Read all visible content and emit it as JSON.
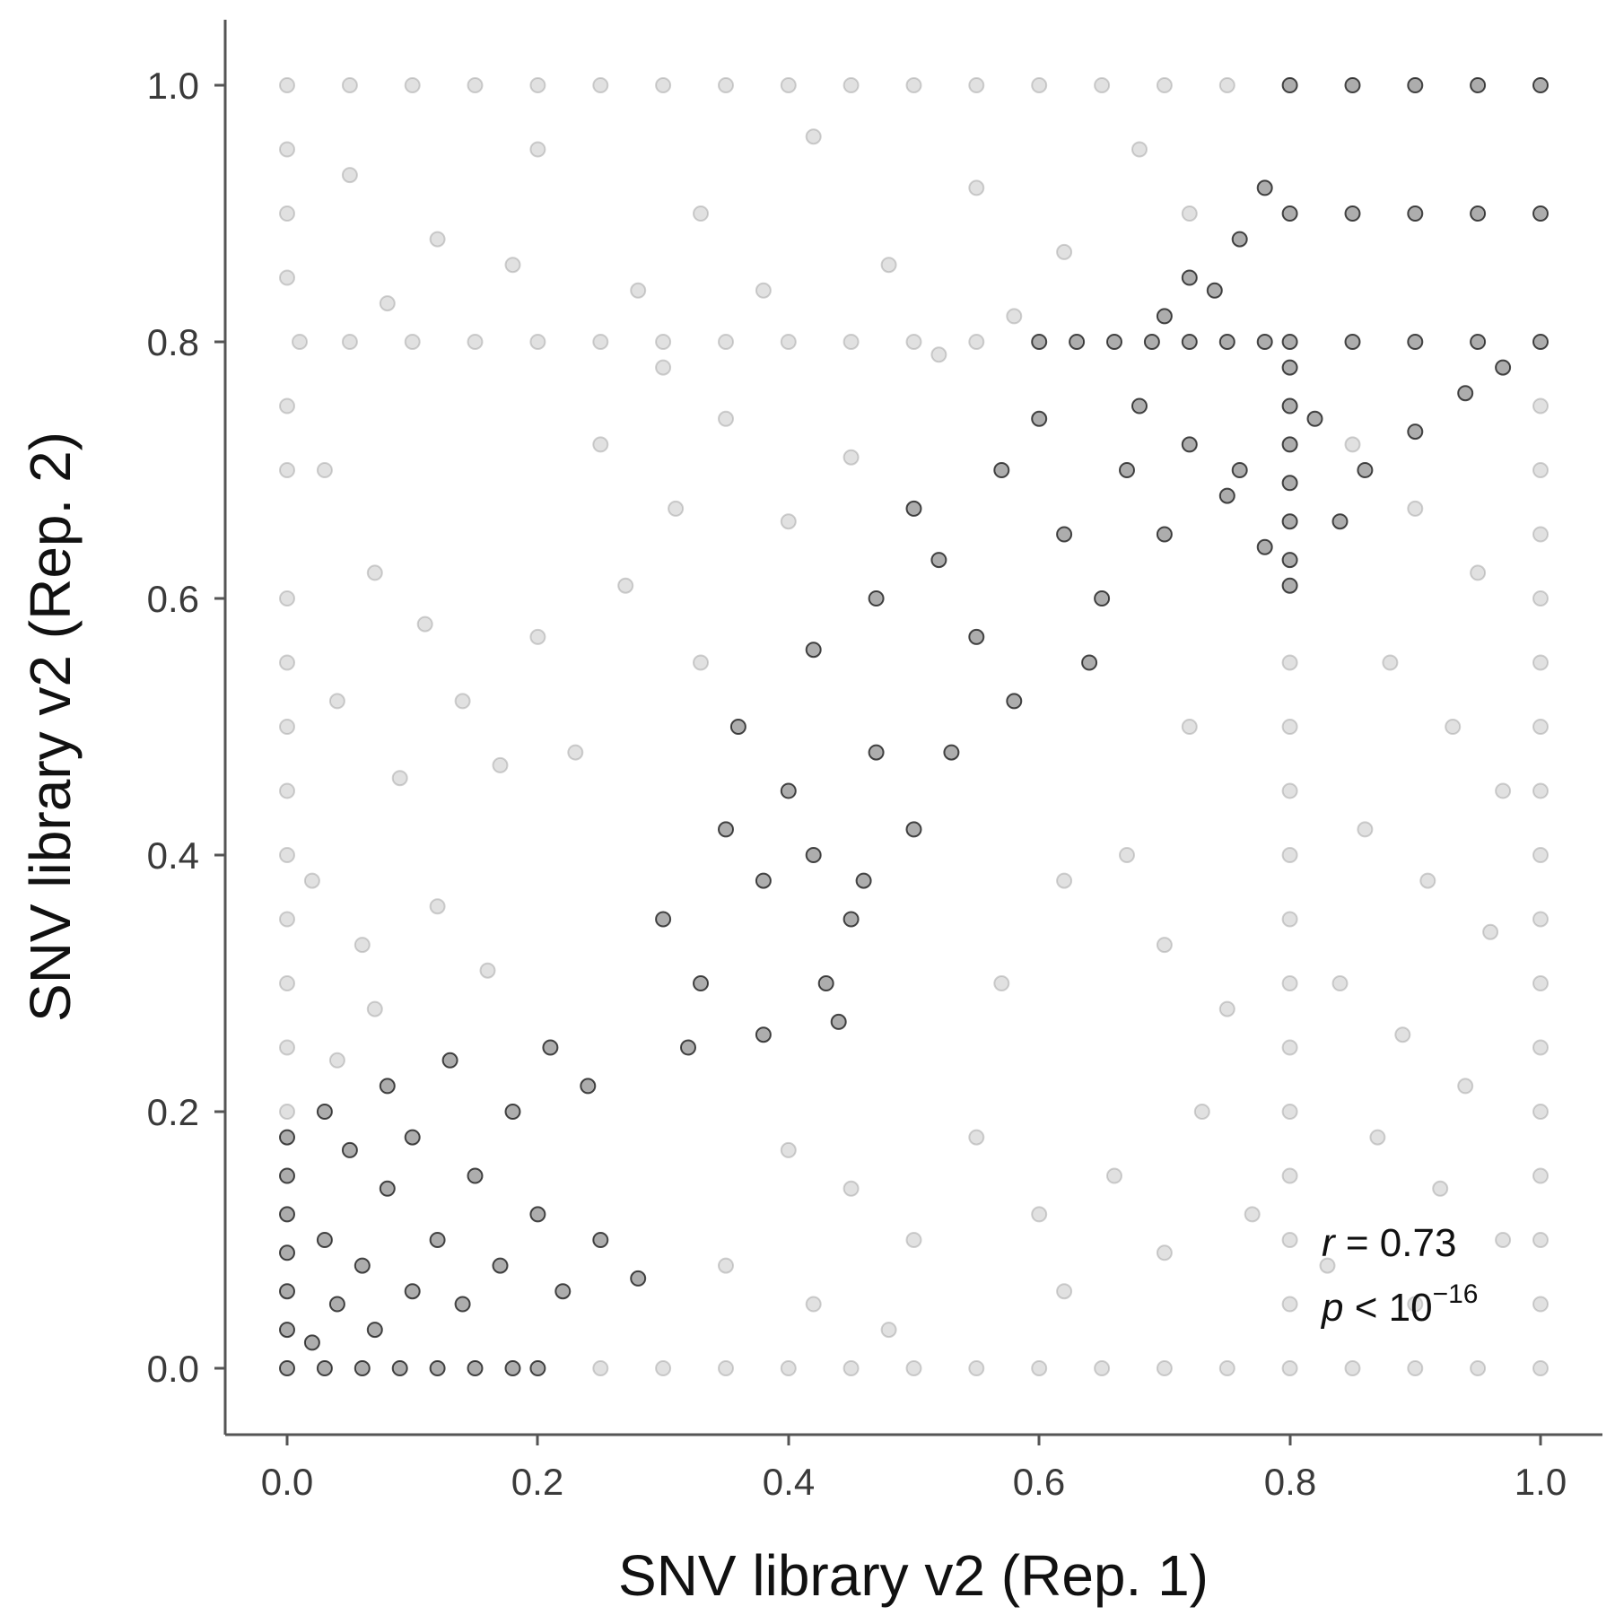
{
  "chart_data": {
    "type": "scatter",
    "xlabel": "SNV library v2 (Rep. 1)",
    "ylabel": "SNV library v2 (Rep. 2)",
    "xlim": [
      0.0,
      1.0
    ],
    "ylim": [
      0.0,
      1.0
    ],
    "xticks": [
      "0.0",
      "0.2",
      "0.4",
      "0.6",
      "0.8",
      "1.0"
    ],
    "yticks": [
      "0.0",
      "0.2",
      "0.4",
      "0.6",
      "0.8",
      "1.0"
    ],
    "grid": false,
    "legend": "none",
    "annotation": {
      "r_symbol": "r",
      "r_text": " = 0.73",
      "p_symbol": "p",
      "p_text": " < 10",
      "p_exponent": "−16"
    },
    "series": [
      {
        "color": "#9a9a9a",
        "points": [
          [
            0.0,
            1.0
          ],
          [
            0.05,
            1.0
          ],
          [
            0.1,
            1.0
          ],
          [
            0.15,
            1.0
          ],
          [
            0.2,
            1.0
          ],
          [
            0.25,
            1.0
          ],
          [
            0.3,
            1.0
          ],
          [
            0.35,
            1.0
          ],
          [
            0.4,
            1.0
          ],
          [
            0.45,
            1.0
          ],
          [
            0.5,
            1.0
          ],
          [
            0.55,
            1.0
          ],
          [
            0.6,
            1.0
          ],
          [
            0.65,
            1.0
          ],
          [
            0.7,
            1.0
          ],
          [
            0.75,
            1.0
          ],
          [
            0.0,
            0.95
          ],
          [
            0.0,
            0.9
          ],
          [
            0.0,
            0.85
          ],
          [
            0.0,
            0.75
          ],
          [
            0.0,
            0.7
          ],
          [
            0.0,
            0.6
          ],
          [
            0.0,
            0.55
          ],
          [
            0.0,
            0.5
          ],
          [
            0.0,
            0.45
          ],
          [
            0.0,
            0.4
          ],
          [
            0.0,
            0.35
          ],
          [
            0.0,
            0.3
          ],
          [
            0.0,
            0.25
          ],
          [
            0.0,
            0.2
          ],
          [
            0.01,
            0.8
          ],
          [
            0.05,
            0.8
          ],
          [
            0.1,
            0.8
          ],
          [
            0.15,
            0.8
          ],
          [
            0.2,
            0.8
          ],
          [
            0.25,
            0.8
          ],
          [
            0.3,
            0.8
          ],
          [
            0.35,
            0.8
          ],
          [
            0.4,
            0.8
          ],
          [
            0.45,
            0.8
          ],
          [
            0.5,
            0.8
          ],
          [
            0.55,
            0.8
          ],
          [
            1.0,
            0.75
          ],
          [
            1.0,
            0.7
          ],
          [
            1.0,
            0.65
          ],
          [
            1.0,
            0.6
          ],
          [
            1.0,
            0.55
          ],
          [
            1.0,
            0.5
          ],
          [
            1.0,
            0.45
          ],
          [
            1.0,
            0.4
          ],
          [
            1.0,
            0.35
          ],
          [
            1.0,
            0.3
          ],
          [
            1.0,
            0.25
          ],
          [
            1.0,
            0.2
          ],
          [
            1.0,
            0.15
          ],
          [
            1.0,
            0.1
          ],
          [
            1.0,
            0.05
          ],
          [
            1.0,
            0.0
          ],
          [
            0.8,
            0.55
          ],
          [
            0.8,
            0.5
          ],
          [
            0.8,
            0.45
          ],
          [
            0.8,
            0.4
          ],
          [
            0.8,
            0.35
          ],
          [
            0.8,
            0.3
          ],
          [
            0.8,
            0.25
          ],
          [
            0.8,
            0.2
          ],
          [
            0.8,
            0.15
          ],
          [
            0.8,
            0.1
          ],
          [
            0.8,
            0.05
          ],
          [
            0.8,
            0.0
          ],
          [
            0.25,
            0.0
          ],
          [
            0.3,
            0.0
          ],
          [
            0.35,
            0.0
          ],
          [
            0.4,
            0.0
          ],
          [
            0.45,
            0.0
          ],
          [
            0.5,
            0.0
          ],
          [
            0.55,
            0.0
          ],
          [
            0.6,
            0.0
          ],
          [
            0.65,
            0.0
          ],
          [
            0.7,
            0.0
          ],
          [
            0.75,
            0.0
          ],
          [
            0.85,
            0.0
          ],
          [
            0.9,
            0.0
          ],
          [
            0.95,
            0.0
          ],
          [
            0.05,
            0.93
          ],
          [
            0.12,
            0.88
          ],
          [
            0.2,
            0.95
          ],
          [
            0.28,
            0.84
          ],
          [
            0.33,
            0.9
          ],
          [
            0.42,
            0.96
          ],
          [
            0.48,
            0.86
          ],
          [
            0.55,
            0.92
          ],
          [
            0.62,
            0.87
          ],
          [
            0.68,
            0.95
          ],
          [
            0.72,
            0.9
          ],
          [
            0.08,
            0.83
          ],
          [
            0.18,
            0.86
          ],
          [
            0.38,
            0.84
          ],
          [
            0.58,
            0.82
          ],
          [
            0.03,
            0.7
          ],
          [
            0.07,
            0.62
          ],
          [
            0.04,
            0.52
          ],
          [
            0.09,
            0.46
          ],
          [
            0.02,
            0.38
          ],
          [
            0.06,
            0.33
          ],
          [
            0.11,
            0.58
          ],
          [
            0.14,
            0.52
          ],
          [
            0.2,
            0.57
          ],
          [
            0.17,
            0.47
          ],
          [
            0.23,
            0.48
          ],
          [
            0.27,
            0.61
          ],
          [
            0.31,
            0.67
          ],
          [
            0.25,
            0.72
          ],
          [
            0.12,
            0.36
          ],
          [
            0.07,
            0.28
          ],
          [
            0.04,
            0.24
          ],
          [
            0.16,
            0.31
          ],
          [
            0.33,
            0.55
          ],
          [
            0.45,
            0.71
          ],
          [
            0.4,
            0.66
          ],
          [
            0.35,
            0.74
          ],
          [
            0.52,
            0.79
          ],
          [
            0.3,
            0.78
          ],
          [
            0.85,
            0.72
          ],
          [
            0.9,
            0.67
          ],
          [
            0.95,
            0.62
          ],
          [
            0.88,
            0.55
          ],
          [
            0.93,
            0.5
          ],
          [
            0.97,
            0.45
          ],
          [
            0.86,
            0.42
          ],
          [
            0.91,
            0.38
          ],
          [
            0.96,
            0.34
          ],
          [
            0.84,
            0.3
          ],
          [
            0.89,
            0.26
          ],
          [
            0.94,
            0.22
          ],
          [
            0.87,
            0.18
          ],
          [
            0.92,
            0.14
          ],
          [
            0.97,
            0.1
          ],
          [
            0.83,
            0.08
          ],
          [
            0.9,
            0.05
          ],
          [
            0.72,
            0.5
          ],
          [
            0.67,
            0.4
          ],
          [
            0.7,
            0.33
          ],
          [
            0.75,
            0.28
          ],
          [
            0.73,
            0.2
          ],
          [
            0.66,
            0.15
          ],
          [
            0.6,
            0.12
          ],
          [
            0.55,
            0.18
          ],
          [
            0.5,
            0.1
          ],
          [
            0.45,
            0.14
          ],
          [
            0.4,
            0.17
          ],
          [
            0.35,
            0.08
          ],
          [
            0.42,
            0.05
          ],
          [
            0.48,
            0.03
          ],
          [
            0.62,
            0.06
          ],
          [
            0.7,
            0.09
          ],
          [
            0.77,
            0.12
          ],
          [
            0.57,
            0.3
          ],
          [
            0.62,
            0.38
          ]
        ]
      },
      {
        "color": "#000000",
        "points": [
          [
            0.8,
            1.0
          ],
          [
            0.85,
            1.0
          ],
          [
            0.9,
            1.0
          ],
          [
            0.95,
            1.0
          ],
          [
            1.0,
            1.0
          ],
          [
            0.8,
            0.9
          ],
          [
            0.85,
            0.9
          ],
          [
            0.9,
            0.9
          ],
          [
            0.95,
            0.9
          ],
          [
            1.0,
            0.9
          ],
          [
            0.8,
            0.8
          ],
          [
            0.85,
            0.8
          ],
          [
            0.9,
            0.8
          ],
          [
            0.95,
            0.8
          ],
          [
            1.0,
            0.8
          ],
          [
            0.6,
            0.8
          ],
          [
            0.63,
            0.8
          ],
          [
            0.66,
            0.8
          ],
          [
            0.69,
            0.8
          ],
          [
            0.72,
            0.8
          ],
          [
            0.75,
            0.8
          ],
          [
            0.78,
            0.8
          ],
          [
            0.8,
            0.78
          ],
          [
            0.8,
            0.75
          ],
          [
            0.8,
            0.72
          ],
          [
            0.8,
            0.69
          ],
          [
            0.8,
            0.66
          ],
          [
            0.8,
            0.63
          ],
          [
            0.8,
            0.61
          ],
          [
            0.0,
            0.0
          ],
          [
            0.0,
            0.03
          ],
          [
            0.0,
            0.06
          ],
          [
            0.0,
            0.09
          ],
          [
            0.0,
            0.12
          ],
          [
            0.0,
            0.15
          ],
          [
            0.0,
            0.18
          ],
          [
            0.03,
            0.0
          ],
          [
            0.06,
            0.0
          ],
          [
            0.09,
            0.0
          ],
          [
            0.12,
            0.0
          ],
          [
            0.15,
            0.0
          ],
          [
            0.18,
            0.0
          ],
          [
            0.2,
            0.0
          ],
          [
            0.02,
            0.02
          ],
          [
            0.04,
            0.05
          ],
          [
            0.07,
            0.03
          ],
          [
            0.03,
            0.1
          ],
          [
            0.06,
            0.08
          ],
          [
            0.1,
            0.06
          ],
          [
            0.12,
            0.1
          ],
          [
            0.08,
            0.14
          ],
          [
            0.05,
            0.17
          ],
          [
            0.14,
            0.05
          ],
          [
            0.17,
            0.08
          ],
          [
            0.2,
            0.12
          ],
          [
            0.22,
            0.06
          ],
          [
            0.25,
            0.1
          ],
          [
            0.28,
            0.07
          ],
          [
            0.03,
            0.2
          ],
          [
            0.1,
            0.18
          ],
          [
            0.15,
            0.15
          ],
          [
            0.18,
            0.2
          ],
          [
            0.24,
            0.22
          ],
          [
            0.21,
            0.25
          ],
          [
            0.13,
            0.24
          ],
          [
            0.08,
            0.22
          ],
          [
            0.3,
            0.35
          ],
          [
            0.33,
            0.3
          ],
          [
            0.35,
            0.42
          ],
          [
            0.38,
            0.38
          ],
          [
            0.4,
            0.45
          ],
          [
            0.42,
            0.4
          ],
          [
            0.45,
            0.35
          ],
          [
            0.43,
            0.3
          ],
          [
            0.47,
            0.48
          ],
          [
            0.5,
            0.42
          ],
          [
            0.36,
            0.5
          ],
          [
            0.42,
            0.56
          ],
          [
            0.47,
            0.6
          ],
          [
            0.52,
            0.63
          ],
          [
            0.55,
            0.57
          ],
          [
            0.5,
            0.67
          ],
          [
            0.57,
            0.7
          ],
          [
            0.6,
            0.74
          ],
          [
            0.62,
            0.65
          ],
          [
            0.65,
            0.6
          ],
          [
            0.67,
            0.7
          ],
          [
            0.7,
            0.65
          ],
          [
            0.72,
            0.72
          ],
          [
            0.68,
            0.75
          ],
          [
            0.75,
            0.68
          ],
          [
            0.58,
            0.52
          ],
          [
            0.64,
            0.55
          ],
          [
            0.53,
            0.48
          ],
          [
            0.46,
            0.38
          ],
          [
            0.38,
            0.26
          ],
          [
            0.44,
            0.27
          ],
          [
            0.32,
            0.25
          ],
          [
            0.74,
            0.84
          ],
          [
            0.76,
            0.88
          ],
          [
            0.72,
            0.85
          ],
          [
            0.78,
            0.92
          ],
          [
            0.7,
            0.82
          ],
          [
            0.82,
            0.74
          ],
          [
            0.86,
            0.7
          ],
          [
            0.9,
            0.73
          ],
          [
            0.94,
            0.76
          ],
          [
            0.97,
            0.78
          ],
          [
            0.84,
            0.66
          ],
          [
            0.78,
            0.64
          ],
          [
            0.76,
            0.7
          ]
        ]
      }
    ]
  }
}
